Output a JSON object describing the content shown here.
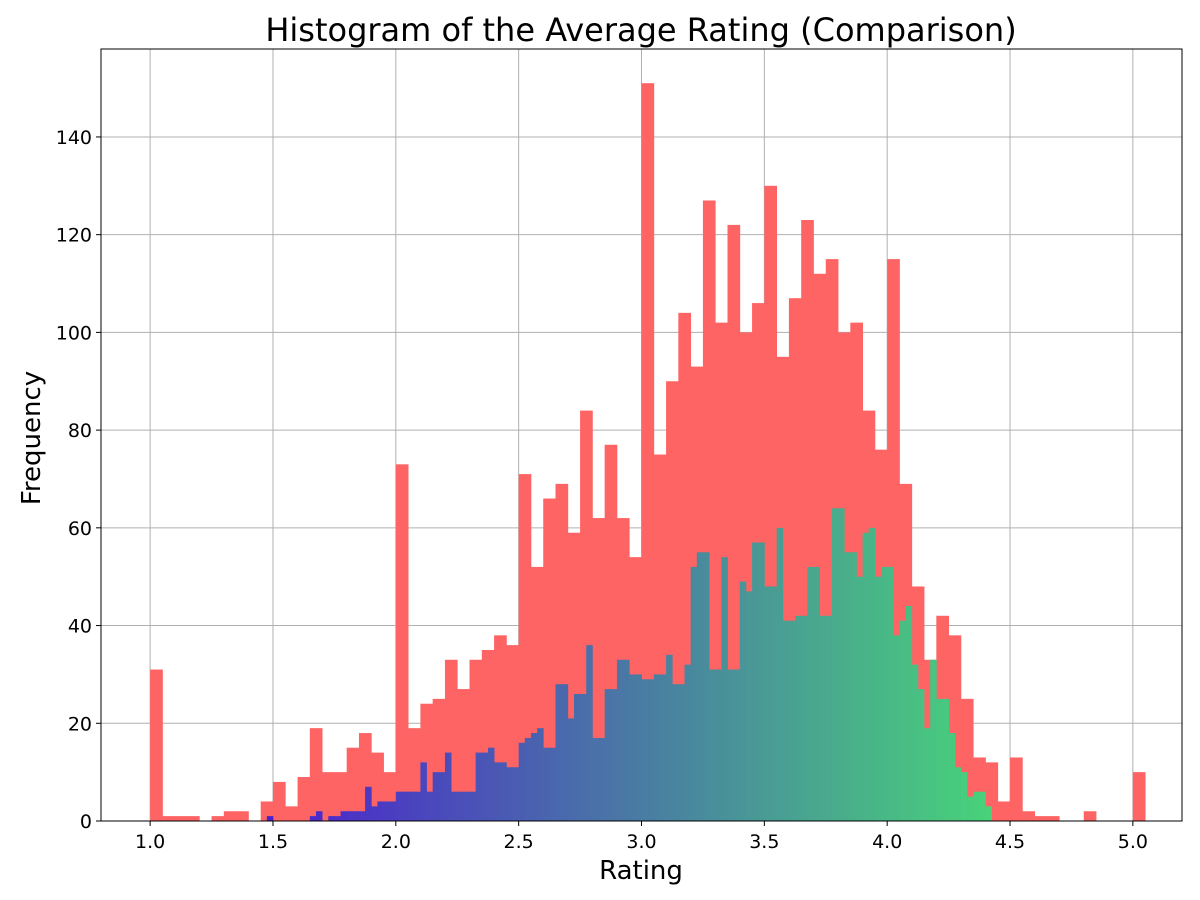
{
  "chart_data": {
    "type": "bar",
    "title": "Histogram of the Average Rating (Comparison)",
    "xlabel": "Rating",
    "ylabel": "Frequency",
    "xlim": [
      0.8,
      5.2
    ],
    "ylim": [
      0,
      158
    ],
    "xticks": [
      1.0,
      1.5,
      2.0,
      2.5,
      3.0,
      3.5,
      4.0,
      4.5,
      5.0
    ],
    "xtick_labels": [
      "1.0",
      "1.5",
      "2.0",
      "2.5",
      "3.0",
      "3.5",
      "4.0",
      "4.5",
      "5.0"
    ],
    "yticks": [
      0,
      20,
      40,
      60,
      80,
      100,
      120,
      140
    ],
    "ytick_labels": [
      "0",
      "20",
      "40",
      "60",
      "80",
      "100",
      "120",
      "140"
    ],
    "grid": true,
    "series": [
      {
        "color": "#ff6464",
        "bin_start": 1.0,
        "bin_width": 0.05,
        "values": [
          31,
          1,
          1,
          1,
          0,
          1,
          2,
          2,
          0,
          4,
          8,
          3,
          9,
          19,
          10,
          10,
          15,
          18,
          14,
          10,
          73,
          19,
          24,
          25,
          33,
          27,
          33,
          35,
          38,
          36,
          71,
          52,
          66,
          69,
          59,
          84,
          62,
          77,
          62,
          54,
          151,
          75,
          90,
          104,
          93,
          127,
          102,
          122,
          100,
          106,
          130,
          95,
          107,
          123,
          112,
          115,
          100,
          102,
          84,
          76,
          115,
          69,
          48,
          33,
          42,
          38,
          25,
          13,
          12,
          4,
          13,
          2,
          1,
          1,
          0,
          0,
          2,
          0,
          0,
          0,
          10
        ]
      },
      {
        "color_start": "#4b20cf",
        "color_end": "#48d27a",
        "bin_start": 1.475,
        "bin_width": 0.025,
        "values": [
          1,
          0,
          0,
          0,
          0,
          0,
          0,
          1,
          2,
          0,
          1,
          1,
          2,
          2,
          2,
          2,
          7,
          3,
          4,
          4,
          4,
          6,
          6,
          6,
          6,
          12,
          6,
          10,
          10,
          14,
          6,
          6,
          6,
          6,
          14,
          14,
          15,
          12,
          12,
          11,
          11,
          16,
          17,
          18,
          19,
          15,
          15,
          28,
          28,
          21,
          26,
          26,
          36,
          17,
          17,
          27,
          27,
          33,
          33,
          30,
          30,
          29,
          29,
          30,
          30,
          34,
          28,
          28,
          32,
          52,
          55,
          55,
          31,
          31,
          54,
          31,
          31,
          49,
          47,
          57,
          57,
          48,
          48,
          60,
          41,
          41,
          42,
          42,
          52,
          52,
          42,
          42,
          64,
          64,
          55,
          55,
          50,
          59,
          60,
          50,
          52,
          52,
          38,
          41,
          44,
          32,
          27,
          19,
          33,
          25,
          25,
          18,
          11,
          10,
          5,
          6,
          6,
          3
        ]
      }
    ]
  }
}
